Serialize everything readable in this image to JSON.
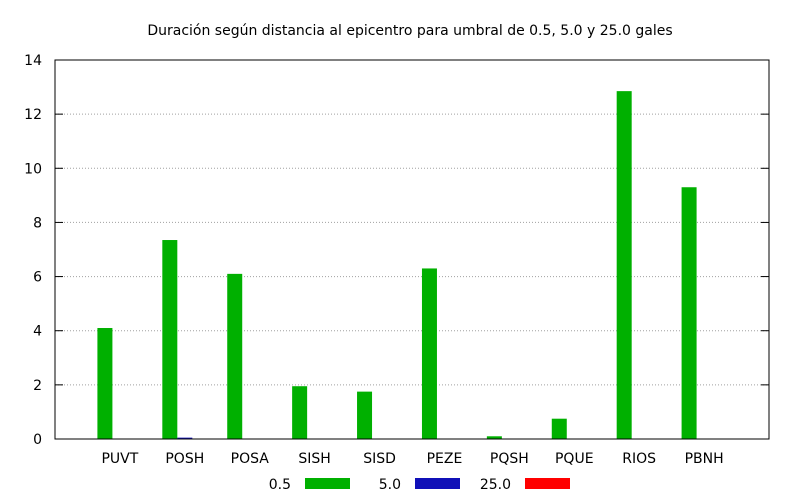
{
  "chart_data": {
    "type": "bar",
    "title": "Duración según distancia al epicentro para umbral de 0.5, 5.0 y 25.0 gales",
    "xlabel": "",
    "ylabel": "",
    "categories": [
      "PUVT",
      "POSH",
      "POSA",
      "SISH",
      "SISD",
      "PEZE",
      "PQSH",
      "PQUE",
      "RIOS",
      "PBNH"
    ],
    "series": [
      {
        "name": "0.5",
        "color": "#00b000",
        "values": [
          4.1,
          7.35,
          6.1,
          1.95,
          1.75,
          6.3,
          0.1,
          0.75,
          12.85,
          9.3
        ]
      },
      {
        "name": "5.0",
        "color": "#1010b8",
        "values": [
          0,
          0.05,
          0,
          0,
          0,
          0,
          0,
          0,
          0,
          0
        ]
      },
      {
        "name": "25.0",
        "color": "#ff0000",
        "values": [
          0,
          0,
          0,
          0,
          0,
          0,
          0,
          0,
          0,
          0
        ]
      }
    ],
    "yticks": [
      "0",
      "2",
      "4",
      "6",
      "8",
      "10",
      "12",
      "14"
    ],
    "ylim": [
      0,
      14
    ],
    "grid": true,
    "legend_position": "bottom"
  }
}
